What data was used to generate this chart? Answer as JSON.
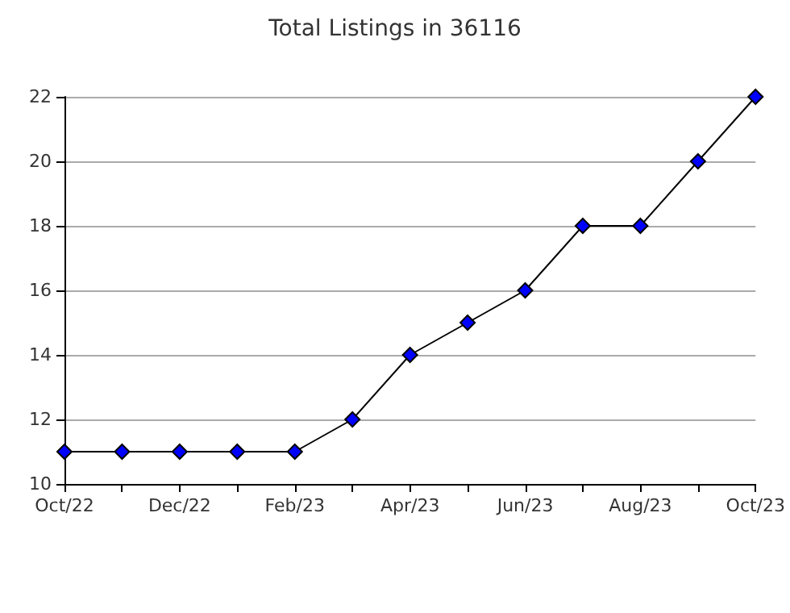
{
  "chart_data": {
    "type": "line",
    "title": "Total Listings in 36116",
    "categories": [
      "Oct/22",
      null,
      "Dec/22",
      null,
      "Feb/23",
      null,
      "Apr/23",
      null,
      "Jun/23",
      null,
      "Aug/23",
      null,
      "Oct/23"
    ],
    "series": [
      {
        "color": "#0000ff",
        "values": [
          11,
          11,
          11,
          11,
          11,
          12,
          14,
          15,
          16,
          18,
          18,
          20,
          22
        ]
      }
    ],
    "ylim": [
      10,
      22
    ],
    "yticks": [
      10,
      12,
      14,
      16,
      18,
      20,
      22
    ],
    "grid": "y",
    "marker": "diamond",
    "line_style": "solid"
  }
}
